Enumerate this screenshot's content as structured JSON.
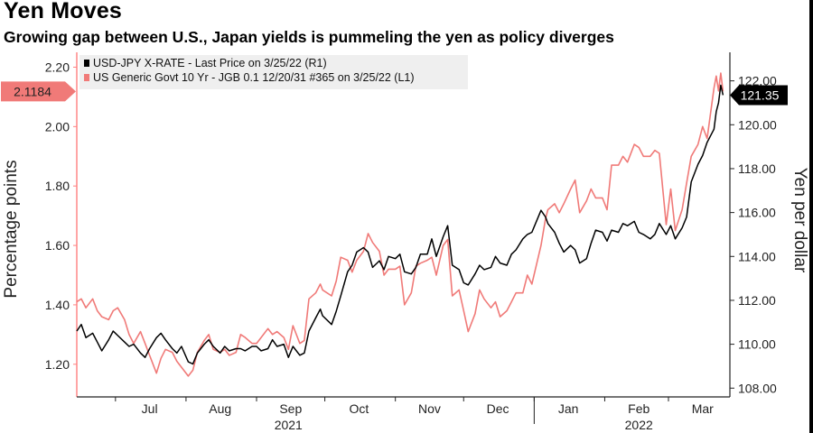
{
  "header": {
    "title": "Yen Moves",
    "subtitle": "Growing gap between U.S., Japan yields is pummeling the yen as policy diverges"
  },
  "chart_data": {
    "type": "line",
    "title": "Yen Moves",
    "subtitle": "Growing gap between U.S., Japan yields is pummeling the yen as policy diverges",
    "ylabel_left": "Percentage points",
    "ylabel_right": "Yen per dollar",
    "y_left_range": [
      1.09,
      2.25
    ],
    "y_right_range": [
      107.6,
      123.3
    ],
    "y_left_ticks": [
      "1.20",
      "1.40",
      "1.60",
      "1.80",
      "2.00",
      "2.20"
    ],
    "y_left_tick_values": [
      1.2,
      1.4,
      1.6,
      1.8,
      2.0,
      2.2
    ],
    "y_right_ticks": [
      "108.00",
      "110.00",
      "112.00",
      "114.00",
      "116.00",
      "118.00",
      "120.00",
      "122.00"
    ],
    "y_right_tick_values": [
      108,
      110,
      112,
      114,
      116,
      118,
      120,
      122
    ],
    "x_range": [
      "2021-06-14",
      "2022-03-28"
    ],
    "x_tick_labels": [
      "Jul",
      "Aug",
      "Sep",
      "Oct",
      "Nov",
      "Dec",
      "Jan",
      "Feb",
      "Mar"
    ],
    "x_tick_dates": [
      "2021-07-01",
      "2021-08-01",
      "2021-09-01",
      "2021-10-01",
      "2021-11-01",
      "2021-12-01",
      "2022-01-01",
      "2022-02-01",
      "2022-03-01"
    ],
    "x_year_labels": [
      {
        "label": "2021",
        "date": "2021-09-15"
      },
      {
        "label": "2022",
        "date": "2022-02-16"
      }
    ],
    "grid": false,
    "legend_position": "top-left",
    "series": [
      {
        "name": "USD-JPY X-RATE - Last Price on 3/25/22 (R1)",
        "axis": "right",
        "color": "#000000",
        "last_value_label": "121.35",
        "points": [
          [
            "2021-06-14",
            110.6
          ],
          [
            "2021-06-16",
            110.9
          ],
          [
            "2021-06-18",
            110.3
          ],
          [
            "2021-06-21",
            110.5
          ],
          [
            "2021-06-23",
            110.1
          ],
          [
            "2021-06-25",
            109.7
          ],
          [
            "2021-06-28",
            110.2
          ],
          [
            "2021-06-30",
            110.6
          ],
          [
            "2021-07-02",
            110.4
          ],
          [
            "2021-07-05",
            110.1
          ],
          [
            "2021-07-07",
            109.9
          ],
          [
            "2021-07-09",
            110.0
          ],
          [
            "2021-07-12",
            109.6
          ],
          [
            "2021-07-14",
            109.4
          ],
          [
            "2021-07-16",
            109.8
          ],
          [
            "2021-07-19",
            110.3
          ],
          [
            "2021-07-21",
            110.5
          ],
          [
            "2021-07-23",
            110.2
          ],
          [
            "2021-07-26",
            109.8
          ],
          [
            "2021-07-28",
            109.6
          ],
          [
            "2021-07-30",
            109.9
          ],
          [
            "2021-08-02",
            109.2
          ],
          [
            "2021-08-04",
            109.1
          ],
          [
            "2021-08-06",
            109.6
          ],
          [
            "2021-08-09",
            110.0
          ],
          [
            "2021-08-11",
            110.2
          ],
          [
            "2021-08-13",
            109.9
          ],
          [
            "2021-08-16",
            109.6
          ],
          [
            "2021-08-18",
            109.9
          ],
          [
            "2021-08-20",
            109.7
          ],
          [
            "2021-08-23",
            109.8
          ],
          [
            "2021-08-25",
            109.8
          ],
          [
            "2021-08-27",
            109.7
          ],
          [
            "2021-08-30",
            109.9
          ],
          [
            "2021-09-01",
            109.9
          ],
          [
            "2021-09-03",
            109.7
          ],
          [
            "2021-09-06",
            109.8
          ],
          [
            "2021-09-08",
            110.2
          ],
          [
            "2021-09-10",
            109.9
          ],
          [
            "2021-09-13",
            110.0
          ],
          [
            "2021-09-15",
            109.4
          ],
          [
            "2021-09-17",
            109.9
          ],
          [
            "2021-09-20",
            109.5
          ],
          [
            "2021-09-22",
            109.6
          ],
          [
            "2021-09-24",
            110.6
          ],
          [
            "2021-09-27",
            111.2
          ],
          [
            "2021-09-29",
            111.6
          ],
          [
            "2021-09-30",
            111.3
          ],
          [
            "2021-10-04",
            110.9
          ],
          [
            "2021-10-06",
            111.5
          ],
          [
            "2021-10-08",
            112.2
          ],
          [
            "2021-10-11",
            113.3
          ],
          [
            "2021-10-13",
            113.6
          ],
          [
            "2021-10-15",
            114.2
          ],
          [
            "2021-10-18",
            114.4
          ],
          [
            "2021-10-20",
            114.2
          ],
          [
            "2021-10-22",
            113.5
          ],
          [
            "2021-10-25",
            113.8
          ],
          [
            "2021-10-27",
            113.4
          ],
          [
            "2021-10-29",
            114.0
          ],
          [
            "2021-11-01",
            113.9
          ],
          [
            "2021-11-03",
            114.1
          ],
          [
            "2021-11-05",
            113.3
          ],
          [
            "2021-11-08",
            113.2
          ],
          [
            "2021-11-10",
            113.5
          ],
          [
            "2021-11-12",
            114.1
          ],
          [
            "2021-11-15",
            114.1
          ],
          [
            "2021-11-17",
            114.8
          ],
          [
            "2021-11-19",
            114.0
          ],
          [
            "2021-11-22",
            114.9
          ],
          [
            "2021-11-24",
            115.4
          ],
          [
            "2021-11-26",
            113.6
          ],
          [
            "2021-11-29",
            113.4
          ],
          [
            "2021-12-01",
            112.8
          ],
          [
            "2021-12-03",
            112.7
          ],
          [
            "2021-12-06",
            113.2
          ],
          [
            "2021-12-08",
            113.6
          ],
          [
            "2021-12-10",
            113.4
          ],
          [
            "2021-12-13",
            113.5
          ],
          [
            "2021-12-15",
            114.0
          ],
          [
            "2021-12-17",
            113.7
          ],
          [
            "2021-12-20",
            113.6
          ],
          [
            "2021-12-22",
            114.1
          ],
          [
            "2021-12-24",
            114.3
          ],
          [
            "2021-12-27",
            114.8
          ],
          [
            "2021-12-29",
            115.0
          ],
          [
            "2021-12-31",
            115.1
          ],
          [
            "2022-01-04",
            116.1
          ],
          [
            "2022-01-06",
            115.8
          ],
          [
            "2022-01-07",
            115.5
          ],
          [
            "2022-01-10",
            115.1
          ],
          [
            "2022-01-12",
            114.6
          ],
          [
            "2022-01-14",
            114.2
          ],
          [
            "2022-01-17",
            114.5
          ],
          [
            "2022-01-19",
            114.3
          ],
          [
            "2022-01-21",
            113.7
          ],
          [
            "2022-01-24",
            113.9
          ],
          [
            "2022-01-26",
            114.6
          ],
          [
            "2022-01-28",
            115.2
          ],
          [
            "2022-01-31",
            115.1
          ],
          [
            "2022-02-02",
            114.7
          ],
          [
            "2022-02-04",
            115.2
          ],
          [
            "2022-02-07",
            115.1
          ],
          [
            "2022-02-09",
            115.5
          ],
          [
            "2022-02-11",
            115.4
          ],
          [
            "2022-02-14",
            115.6
          ],
          [
            "2022-02-16",
            115.1
          ],
          [
            "2022-02-18",
            115.0
          ],
          [
            "2022-02-21",
            114.8
          ],
          [
            "2022-02-23",
            115.0
          ],
          [
            "2022-02-25",
            115.5
          ],
          [
            "2022-02-28",
            115.0
          ],
          [
            "2022-03-02",
            115.4
          ],
          [
            "2022-03-04",
            114.8
          ],
          [
            "2022-03-07",
            115.3
          ],
          [
            "2022-03-09",
            115.8
          ],
          [
            "2022-03-11",
            117.4
          ],
          [
            "2022-03-14",
            118.2
          ],
          [
            "2022-03-16",
            118.6
          ],
          [
            "2022-03-18",
            119.2
          ],
          [
            "2022-03-21",
            119.8
          ],
          [
            "2022-03-22",
            120.6
          ],
          [
            "2022-03-23",
            121.0
          ],
          [
            "2022-03-24",
            121.8
          ],
          [
            "2022-03-25",
            121.35
          ]
        ]
      },
      {
        "name": "US Generic Govt 10 Yr - JGB 0.1 12/20/31 #365 on 3/25/22 (L1)",
        "axis": "left",
        "color": "#f07a78",
        "last_value_label": "2.1184",
        "points": [
          [
            "2021-06-14",
            1.41
          ],
          [
            "2021-06-16",
            1.42
          ],
          [
            "2021-06-18",
            1.39
          ],
          [
            "2021-06-21",
            1.42
          ],
          [
            "2021-06-23",
            1.38
          ],
          [
            "2021-06-25",
            1.36
          ],
          [
            "2021-06-28",
            1.35
          ],
          [
            "2021-06-30",
            1.38
          ],
          [
            "2021-07-02",
            1.39
          ],
          [
            "2021-07-05",
            1.35
          ],
          [
            "2021-07-07",
            1.3
          ],
          [
            "2021-07-09",
            1.27
          ],
          [
            "2021-07-12",
            1.31
          ],
          [
            "2021-07-14",
            1.27
          ],
          [
            "2021-07-16",
            1.23
          ],
          [
            "2021-07-19",
            1.17
          ],
          [
            "2021-07-21",
            1.22
          ],
          [
            "2021-07-23",
            1.25
          ],
          [
            "2021-07-26",
            1.24
          ],
          [
            "2021-07-28",
            1.21
          ],
          [
            "2021-07-30",
            1.19
          ],
          [
            "2021-08-02",
            1.16
          ],
          [
            "2021-08-04",
            1.18
          ],
          [
            "2021-08-06",
            1.24
          ],
          [
            "2021-08-09",
            1.28
          ],
          [
            "2021-08-11",
            1.3
          ],
          [
            "2021-08-13",
            1.25
          ],
          [
            "2021-08-16",
            1.24
          ],
          [
            "2021-08-18",
            1.25
          ],
          [
            "2021-08-20",
            1.23
          ],
          [
            "2021-08-23",
            1.24
          ],
          [
            "2021-08-25",
            1.3
          ],
          [
            "2021-08-27",
            1.29
          ],
          [
            "2021-08-30",
            1.27
          ],
          [
            "2021-09-01",
            1.27
          ],
          [
            "2021-09-03",
            1.29
          ],
          [
            "2021-09-06",
            1.32
          ],
          [
            "2021-09-08",
            1.3
          ],
          [
            "2021-09-10",
            1.31
          ],
          [
            "2021-09-13",
            1.29
          ],
          [
            "2021-09-15",
            1.25
          ],
          [
            "2021-09-17",
            1.33
          ],
          [
            "2021-09-20",
            1.27
          ],
          [
            "2021-09-22",
            1.28
          ],
          [
            "2021-09-24",
            1.42
          ],
          [
            "2021-09-27",
            1.44
          ],
          [
            "2021-09-29",
            1.47
          ],
          [
            "2021-09-30",
            1.45
          ],
          [
            "2021-10-04",
            1.43
          ],
          [
            "2021-10-06",
            1.48
          ],
          [
            "2021-10-08",
            1.56
          ],
          [
            "2021-10-11",
            1.55
          ],
          [
            "2021-10-13",
            1.51
          ],
          [
            "2021-10-15",
            1.55
          ],
          [
            "2021-10-18",
            1.58
          ],
          [
            "2021-10-20",
            1.64
          ],
          [
            "2021-10-22",
            1.61
          ],
          [
            "2021-10-25",
            1.58
          ],
          [
            "2021-10-27",
            1.5
          ],
          [
            "2021-10-29",
            1.52
          ],
          [
            "2021-11-01",
            1.52
          ],
          [
            "2021-11-03",
            1.53
          ],
          [
            "2021-11-05",
            1.4
          ],
          [
            "2021-11-08",
            1.44
          ],
          [
            "2021-11-10",
            1.53
          ],
          [
            "2021-11-12",
            1.54
          ],
          [
            "2021-11-15",
            1.55
          ],
          [
            "2021-11-17",
            1.56
          ],
          [
            "2021-11-19",
            1.5
          ],
          [
            "2021-11-22",
            1.6
          ],
          [
            "2021-11-24",
            1.62
          ],
          [
            "2021-11-26",
            1.43
          ],
          [
            "2021-11-29",
            1.45
          ],
          [
            "2021-12-01",
            1.38
          ],
          [
            "2021-12-03",
            1.31
          ],
          [
            "2021-12-06",
            1.37
          ],
          [
            "2021-12-08",
            1.45
          ],
          [
            "2021-12-10",
            1.42
          ],
          [
            "2021-12-13",
            1.39
          ],
          [
            "2021-12-15",
            1.41
          ],
          [
            "2021-12-17",
            1.36
          ],
          [
            "2021-12-20",
            1.38
          ],
          [
            "2021-12-22",
            1.41
          ],
          [
            "2021-12-24",
            1.44
          ],
          [
            "2021-12-27",
            1.44
          ],
          [
            "2021-12-29",
            1.5
          ],
          [
            "2021-12-31",
            1.47
          ],
          [
            "2022-01-04",
            1.6
          ],
          [
            "2022-01-06",
            1.69
          ],
          [
            "2022-01-07",
            1.72
          ],
          [
            "2022-01-10",
            1.74
          ],
          [
            "2022-01-12",
            1.71
          ],
          [
            "2022-01-14",
            1.74
          ],
          [
            "2022-01-17",
            1.79
          ],
          [
            "2022-01-19",
            1.82
          ],
          [
            "2022-01-21",
            1.71
          ],
          [
            "2022-01-24",
            1.75
          ],
          [
            "2022-01-26",
            1.79
          ],
          [
            "2022-01-28",
            1.76
          ],
          [
            "2022-01-31",
            1.76
          ],
          [
            "2022-02-02",
            1.72
          ],
          [
            "2022-02-04",
            1.87
          ],
          [
            "2022-02-07",
            1.87
          ],
          [
            "2022-02-09",
            1.9
          ],
          [
            "2022-02-11",
            1.88
          ],
          [
            "2022-02-14",
            1.94
          ],
          [
            "2022-02-16",
            1.93
          ],
          [
            "2022-02-18",
            1.9
          ],
          [
            "2022-02-21",
            1.9
          ],
          [
            "2022-02-23",
            1.92
          ],
          [
            "2022-02-25",
            1.91
          ],
          [
            "2022-02-28",
            1.67
          ],
          [
            "2022-03-02",
            1.79
          ],
          [
            "2022-03-04",
            1.65
          ],
          [
            "2022-03-07",
            1.72
          ],
          [
            "2022-03-09",
            1.81
          ],
          [
            "2022-03-11",
            1.9
          ],
          [
            "2022-03-14",
            1.94
          ],
          [
            "2022-03-16",
            2.0
          ],
          [
            "2022-03-18",
            1.96
          ],
          [
            "2022-03-21",
            2.13
          ],
          [
            "2022-03-22",
            2.17
          ],
          [
            "2022-03-23",
            2.12
          ],
          [
            "2022-03-24",
            2.18
          ],
          [
            "2022-03-25",
            2.1184
          ]
        ]
      }
    ]
  }
}
